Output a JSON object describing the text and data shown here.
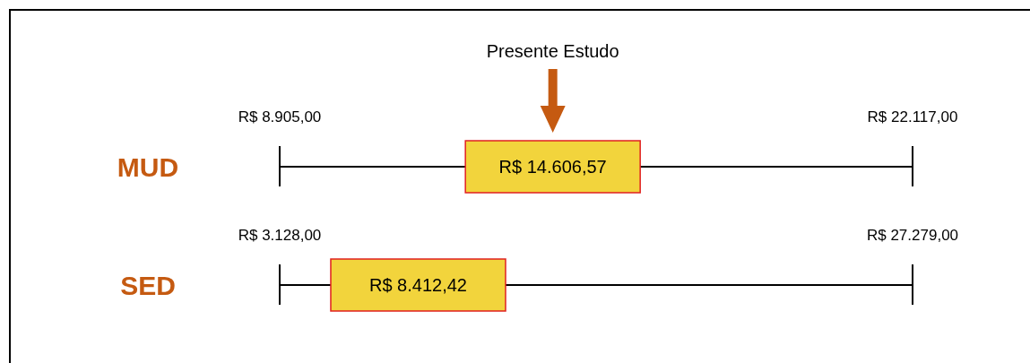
{
  "chart_data": {
    "type": "other",
    "categories": [
      "MUD",
      "SED"
    ],
    "annotations": [
      "Presente Estudo"
    ],
    "series": [
      {
        "color": "#000000",
        "values": [
          8905,
          3128
        ],
        "value_labels": [
          "R$ 8.905,00",
          "R$ 3.128,00"
        ]
      },
      {
        "color": "#000000",
        "values": [
          22117,
          27279
        ],
        "value_labels": [
          "R$ 22.117,00",
          "R$ 27.279,00"
        ]
      },
      {
        "color": "#f2d43c",
        "values": [
          14606.57,
          8412.42
        ],
        "value_labels": [
          "R$ 14.606,57",
          "R$ 8.412,42"
        ]
      }
    ]
  }
}
